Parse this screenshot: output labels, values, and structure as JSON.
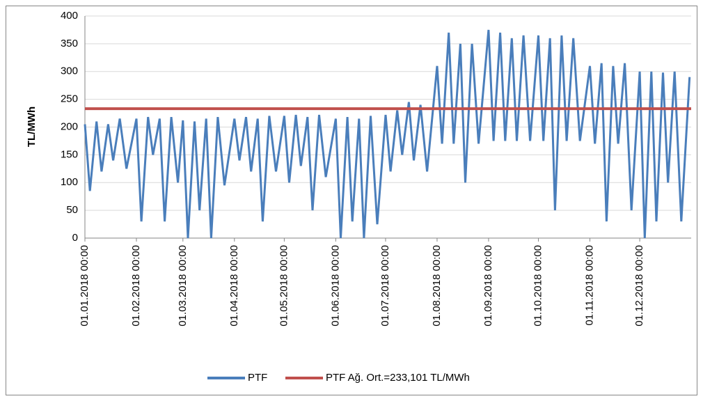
{
  "chart_data": {
    "type": "line",
    "y_label": "TL/MWh",
    "xlim": [
      "01.01.2018 00:00",
      "31.12.2018 23:00"
    ],
    "xticks": [
      "01.01.2018 00:00",
      "01.02.2018 00:00",
      "01.03.2018 00:00",
      "01.04.2018 00:00",
      "01.05.2018 00:00",
      "01.06.2018 00:00",
      "01.07.2018 00:00",
      "01.08.2018 00:00",
      "01.09.2018 00:00",
      "01.10.2018 00:00",
      "01.11.2018 00:00",
      "01.12.2018 00:00"
    ],
    "ylim": [
      0,
      400
    ],
    "yticks": [
      0,
      50,
      100,
      150,
      200,
      250,
      300,
      350,
      400
    ],
    "grid": true,
    "legend": "bottom",
    "series": [
      {
        "name": "PTF",
        "color": "#4a7ebb",
        "x": [
          "01.01.2018 00:00",
          "04.01.2018 00:00",
          "08.01.2018 00:00",
          "11.01.2018 00:00",
          "15.01.2018 00:00",
          "18.01.2018 00:00",
          "22.01.2018 00:00",
          "26.01.2018 00:00",
          "01.02.2018 00:00",
          "04.02.2018 00:00",
          "08.02.2018 00:00",
          "11.02.2018 00:00",
          "15.02.2018 00:00",
          "18.02.2018 00:00",
          "22.02.2018 00:00",
          "26.02.2018 00:00",
          "01.03.2018 00:00",
          "04.03.2018 00:00",
          "08.03.2018 00:00",
          "11.03.2018 00:00",
          "15.03.2018 00:00",
          "18.03.2018 00:00",
          "22.03.2018 00:00",
          "26.03.2018 00:00",
          "01.04.2018 00:00",
          "04.04.2018 00:00",
          "08.04.2018 00:00",
          "11.04.2018 00:00",
          "15.04.2018 00:00",
          "18.04.2018 00:00",
          "22.04.2018 00:00",
          "26.04.2018 00:00",
          "01.05.2018 00:00",
          "04.05.2018 00:00",
          "08.05.2018 00:00",
          "11.05.2018 00:00",
          "15.05.2018 00:00",
          "18.05.2018 00:00",
          "22.05.2018 00:00",
          "26.05.2018 00:00",
          "01.06.2018 00:00",
          "04.06.2018 00:00",
          "08.06.2018 00:00",
          "11.06.2018 00:00",
          "15.06.2018 00:00",
          "18.06.2018 00:00",
          "22.06.2018 00:00",
          "26.06.2018 00:00",
          "01.07.2018 00:00",
          "04.07.2018 00:00",
          "08.07.2018 00:00",
          "11.07.2018 00:00",
          "15.07.2018 00:00",
          "18.07.2018 00:00",
          "22.07.2018 00:00",
          "26.07.2018 00:00",
          "01.08.2018 00:00",
          "04.08.2018 00:00",
          "08.08.2018 00:00",
          "11.08.2018 00:00",
          "15.08.2018 00:00",
          "18.08.2018 00:00",
          "22.08.2018 00:00",
          "26.08.2018 00:00",
          "01.09.2018 00:00",
          "04.09.2018 00:00",
          "08.09.2018 00:00",
          "11.09.2018 00:00",
          "15.09.2018 00:00",
          "18.09.2018 00:00",
          "22.09.2018 00:00",
          "26.09.2018 00:00",
          "01.10.2018 00:00",
          "04.10.2018 00:00",
          "08.10.2018 00:00",
          "11.10.2018 00:00",
          "15.10.2018 00:00",
          "18.10.2018 00:00",
          "22.10.2018 00:00",
          "26.10.2018 00:00",
          "01.11.2018 00:00",
          "04.11.2018 00:00",
          "08.11.2018 00:00",
          "11.11.2018 00:00",
          "15.11.2018 00:00",
          "18.11.2018 00:00",
          "22.11.2018 00:00",
          "26.11.2018 00:00",
          "01.12.2018 00:00",
          "04.12.2018 00:00",
          "08.12.2018 00:00",
          "11.12.2018 00:00",
          "15.12.2018 00:00",
          "18.12.2018 00:00",
          "22.12.2018 00:00",
          "26.12.2018 00:00",
          "31.12.2018 00:00"
        ],
        "values": [
          205,
          85,
          210,
          120,
          205,
          140,
          215,
          125,
          215,
          30,
          218,
          150,
          215,
          30,
          218,
          100,
          212,
          0,
          210,
          50,
          215,
          0,
          218,
          95,
          215,
          140,
          218,
          120,
          215,
          30,
          220,
          120,
          220,
          100,
          222,
          130,
          218,
          50,
          222,
          110,
          215,
          0,
          218,
          30,
          215,
          0,
          220,
          25,
          222,
          120,
          230,
          150,
          245,
          140,
          240,
          120,
          310,
          170,
          370,
          170,
          350,
          100,
          350,
          170,
          375,
          175,
          370,
          175,
          360,
          175,
          365,
          175,
          365,
          175,
          360,
          50,
          365,
          175,
          360,
          175,
          310,
          170,
          315,
          30,
          310,
          170,
          315,
          50,
          300,
          0,
          300,
          30,
          298,
          100,
          300,
          30,
          290
        ]
      },
      {
        "name": "PTF Ağ. Ort.=233,101 TL/MWh",
        "color": "#c0504d",
        "x": [
          "01.01.2018 00:00",
          "31.12.2018 23:00"
        ],
        "values": [
          233.101,
          233.101
        ]
      }
    ]
  }
}
